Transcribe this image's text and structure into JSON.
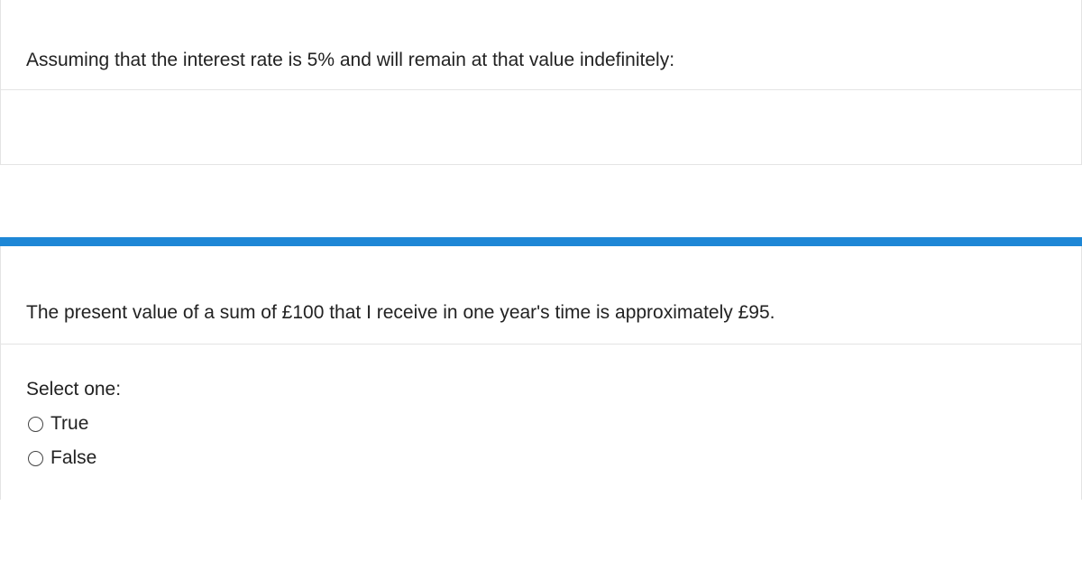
{
  "intro_text": "Assuming that the interest rate is 5% and will remain at that value indefinitely:",
  "statement_text": "The present value of a sum of £100 that I receive in one year's time is approximately £95.",
  "prompt": "Select one:",
  "options": {
    "true_label": "True",
    "false_label": "False"
  },
  "colors": {
    "accent_bar": "#1e87d6",
    "border": "#e4e4e4",
    "text": "#222222"
  }
}
